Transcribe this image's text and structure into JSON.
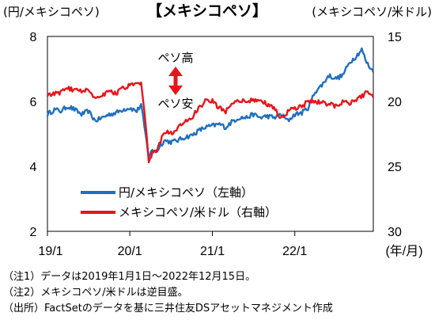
{
  "chart_data": {
    "type": "line",
    "title": "【メキシコペソ】",
    "left_axis_unit": "(円/メキシコペソ)",
    "right_axis_unit": "(メキシコペソ/米ドル)",
    "x_unit": "(年/月)",
    "left_axis": {
      "ylim": [
        2,
        8
      ],
      "ticks": [
        "2",
        "4",
        "6",
        "8"
      ]
    },
    "right_axis": {
      "ylim": [
        30,
        15
      ],
      "inverted": true,
      "ticks": [
        "30",
        "25",
        "20",
        "15"
      ]
    },
    "x_ticks": [
      {
        "label": "19/1",
        "date": "2019-01-01"
      },
      {
        "label": "20/1",
        "date": "2020-01-01"
      },
      {
        "label": "21/1",
        "date": "2021-01-01"
      },
      {
        "label": "22/1",
        "date": "2022-01-01"
      }
    ],
    "xlim": [
      "2019-01-01",
      "2022-12-15"
    ],
    "series": [
      {
        "name": "円/メキシコペソ（左軸）",
        "axis": "left",
        "color": "#1f6fbf",
        "points": [
          [
            "2019-01-01",
            5.6
          ],
          [
            "2019-02-01",
            5.75
          ],
          [
            "2019-03-01",
            5.7
          ],
          [
            "2019-04-01",
            5.85
          ],
          [
            "2019-05-01",
            5.75
          ],
          [
            "2019-06-01",
            5.6
          ],
          [
            "2019-07-01",
            5.7
          ],
          [
            "2019-08-01",
            5.4
          ],
          [
            "2019-09-01",
            5.5
          ],
          [
            "2019-10-01",
            5.6
          ],
          [
            "2019-11-01",
            5.65
          ],
          [
            "2019-12-01",
            5.75
          ],
          [
            "2020-01-01",
            5.8
          ],
          [
            "2020-02-01",
            5.7
          ],
          [
            "2020-02-20",
            5.9
          ],
          [
            "2020-03-10",
            5.0
          ],
          [
            "2020-03-25",
            4.3
          ],
          [
            "2020-04-10",
            4.5
          ],
          [
            "2020-05-01",
            4.5
          ],
          [
            "2020-06-01",
            4.8
          ],
          [
            "2020-07-01",
            4.75
          ],
          [
            "2020-08-01",
            4.8
          ],
          [
            "2020-09-01",
            4.9
          ],
          [
            "2020-10-01",
            4.95
          ],
          [
            "2020-11-01",
            5.1
          ],
          [
            "2020-12-01",
            5.2
          ],
          [
            "2021-01-01",
            5.25
          ],
          [
            "2021-02-01",
            5.3
          ],
          [
            "2021-03-01",
            5.2
          ],
          [
            "2021-04-01",
            5.4
          ],
          [
            "2021-05-01",
            5.5
          ],
          [
            "2021-06-01",
            5.5
          ],
          [
            "2021-07-01",
            5.6
          ],
          [
            "2021-08-01",
            5.5
          ],
          [
            "2021-09-01",
            5.55
          ],
          [
            "2021-10-01",
            5.5
          ],
          [
            "2021-11-01",
            5.6
          ],
          [
            "2021-12-01",
            5.4
          ],
          [
            "2022-01-01",
            5.6
          ],
          [
            "2022-02-01",
            5.65
          ],
          [
            "2022-03-01",
            5.8
          ],
          [
            "2022-04-01",
            6.3
          ],
          [
            "2022-05-01",
            6.5
          ],
          [
            "2022-06-01",
            6.8
          ],
          [
            "2022-07-01",
            6.7
          ],
          [
            "2022-08-01",
            6.8
          ],
          [
            "2022-09-01",
            7.2
          ],
          [
            "2022-10-01",
            7.4
          ],
          [
            "2022-10-25",
            7.6
          ],
          [
            "2022-11-15",
            7.2
          ],
          [
            "2022-12-15",
            6.9
          ]
        ]
      },
      {
        "name": "メキシコペソ/米ドル（右軸）",
        "axis": "right",
        "color": "#e8141a",
        "points": [
          [
            "2019-01-01",
            19.6
          ],
          [
            "2019-02-01",
            19.4
          ],
          [
            "2019-03-01",
            19.3
          ],
          [
            "2019-04-01",
            19.0
          ],
          [
            "2019-05-01",
            19.1
          ],
          [
            "2019-06-01",
            19.2
          ],
          [
            "2019-07-01",
            19.0
          ],
          [
            "2019-08-01",
            19.8
          ],
          [
            "2019-09-01",
            19.5
          ],
          [
            "2019-10-01",
            19.2
          ],
          [
            "2019-11-01",
            19.4
          ],
          [
            "2019-12-01",
            19.0
          ],
          [
            "2020-01-01",
            18.8
          ],
          [
            "2020-02-01",
            18.7
          ],
          [
            "2020-02-20",
            18.7
          ],
          [
            "2020-03-10",
            21.5
          ],
          [
            "2020-03-25",
            24.8
          ],
          [
            "2020-04-10",
            24.0
          ],
          [
            "2020-05-01",
            23.8
          ],
          [
            "2020-06-01",
            22.3
          ],
          [
            "2020-07-01",
            22.5
          ],
          [
            "2020-08-01",
            22.1
          ],
          [
            "2020-09-01",
            21.5
          ],
          [
            "2020-10-01",
            21.3
          ],
          [
            "2020-11-01",
            20.5
          ],
          [
            "2020-12-01",
            20.0
          ],
          [
            "2021-01-01",
            20.0
          ],
          [
            "2021-02-01",
            20.5
          ],
          [
            "2021-03-01",
            20.8
          ],
          [
            "2021-04-01",
            20.0
          ],
          [
            "2021-05-01",
            19.9
          ],
          [
            "2021-06-01",
            20.0
          ],
          [
            "2021-07-01",
            19.9
          ],
          [
            "2021-08-01",
            20.0
          ],
          [
            "2021-09-01",
            20.2
          ],
          [
            "2021-10-01",
            20.5
          ],
          [
            "2021-11-01",
            21.3
          ],
          [
            "2021-12-01",
            20.8
          ],
          [
            "2022-01-01",
            20.5
          ],
          [
            "2022-02-01",
            20.4
          ],
          [
            "2022-03-01",
            20.0
          ],
          [
            "2022-04-01",
            20.0
          ],
          [
            "2022-05-01",
            20.1
          ],
          [
            "2022-06-01",
            20.2
          ],
          [
            "2022-07-01",
            20.4
          ],
          [
            "2022-08-01",
            20.0
          ],
          [
            "2022-09-01",
            20.1
          ],
          [
            "2022-10-01",
            19.9
          ],
          [
            "2022-11-01",
            19.5
          ],
          [
            "2022-11-20",
            19.2
          ],
          [
            "2022-12-15",
            19.7
          ]
        ]
      }
    ],
    "annotations": {
      "up_label": "ペソ高",
      "down_label": "ペソ安",
      "arrow_color": "#e8141a"
    }
  },
  "notes": [
    "（注1）データは2019年1月1日～2022年12月15日。",
    "（注2）メキシコペソ/米ドルは逆目盛。",
    "（出所）FactSetのデータを基に三井住友DSアセットマネジメント作成"
  ]
}
